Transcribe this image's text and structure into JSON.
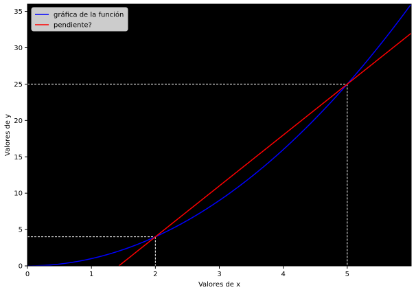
{
  "chart_data": {
    "type": "line",
    "title": "",
    "xlabel": "Valores de x",
    "ylabel": "Valores de y",
    "xlim": [
      0,
      6
    ],
    "ylim": [
      0,
      36
    ],
    "xticks": [
      0,
      1,
      2,
      3,
      4,
      5
    ],
    "yticks": [
      0,
      5,
      10,
      15,
      20,
      25,
      30,
      35
    ],
    "background": "#000000",
    "grid": false,
    "legend_position": "upper-left",
    "series": [
      {
        "name": "gráfica de la función",
        "color": "#0000ff",
        "function": "x^2",
        "x": [
          0,
          0.5,
          1,
          1.5,
          2,
          2.5,
          3,
          3.5,
          4,
          4.5,
          5,
          5.5,
          6
        ],
        "y": [
          0,
          0.25,
          1,
          2.25,
          4,
          6.25,
          9,
          12.25,
          16,
          20.25,
          25,
          30.25,
          36
        ]
      },
      {
        "name": "pendiente?",
        "color": "#ff0000",
        "function": "7x - 10",
        "x": [
          1.43,
          6
        ],
        "y": [
          0,
          32
        ]
      }
    ],
    "guides": [
      {
        "x": 2,
        "y": 4,
        "color": "#ffffff",
        "style": "dashed"
      },
      {
        "x": 5,
        "y": 25,
        "color": "#ffffff",
        "style": "dashed"
      }
    ]
  }
}
